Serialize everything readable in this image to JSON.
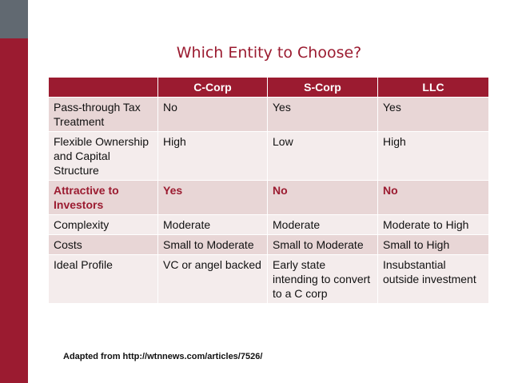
{
  "slide": {
    "title": "Which Entity to Choose?",
    "source_note": "Adapted from http://wtnnews.com/articles/7526/"
  },
  "table": {
    "headers": [
      "",
      "C-Corp",
      "S-Corp",
      "LLC"
    ],
    "rows": [
      [
        "Pass-through Tax Treatment",
        "No",
        "Yes",
        "Yes"
      ],
      [
        "Flexible Ownership and Capital Structure",
        "High",
        "Low",
        "High"
      ],
      [
        "Attractive to Investors",
        "Yes",
        "No",
        "No"
      ],
      [
        "Complexity",
        "Moderate",
        "Moderate",
        "Moderate to High"
      ],
      [
        "Costs",
        "Small to Moderate",
        "Small to Moderate",
        "Small to High"
      ],
      [
        "Ideal Profile",
        "VC or angel backed",
        "Early state intending to convert to a C corp",
        "Insubstantial outside investment"
      ]
    ]
  },
  "colors": {
    "accent": "#9b1b30",
    "side_gray": "#616971",
    "row_odd": "#e8d6d6",
    "row_even": "#f4ecec"
  }
}
